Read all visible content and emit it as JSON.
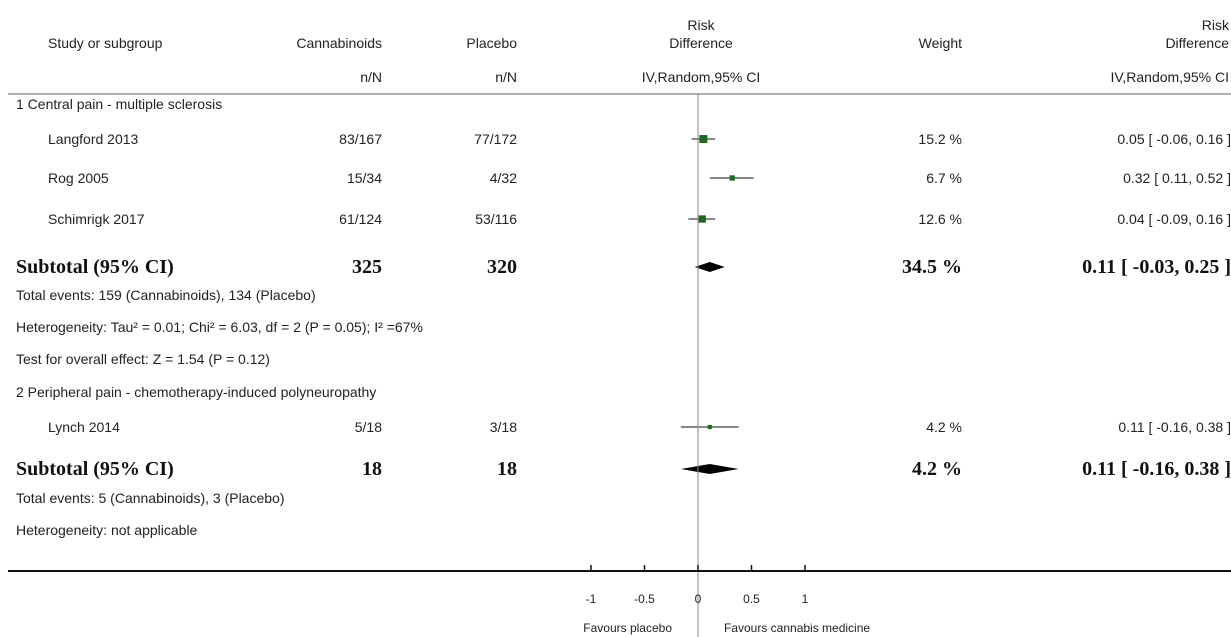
{
  "chart_data": {
    "type": "forest",
    "measure": "Risk Difference",
    "method": "IV,Random,95% CI",
    "columns": {
      "study": "Study or subgroup",
      "treatment": "Cannabinoids",
      "control": "Placebo",
      "effect_top": "Risk",
      "effect_bottom": "Difference",
      "weight": "Weight",
      "events_label": "n/N",
      "method_label": "IV,Random,95% CI"
    },
    "subgroups": [
      {
        "title": "1 Central pain - multiple sclerosis",
        "studies": [
          {
            "name": "Langford 2013",
            "treatment": "83/167",
            "control": "77/172",
            "rd": 0.05,
            "lower": -0.06,
            "upper": 0.16,
            "weight_pct": 15.2,
            "weight": "15.2 %",
            "ci_text": "0.05 [ -0.06, 0.16 ]"
          },
          {
            "name": "Rog 2005",
            "treatment": "15/34",
            "control": "4/32",
            "rd": 0.32,
            "lower": 0.11,
            "upper": 0.52,
            "weight_pct": 6.7,
            "weight": "6.7 %",
            "ci_text": "0.32 [ 0.11, 0.52 ]"
          },
          {
            "name": "Schimrigk 2017",
            "treatment": "61/124",
            "control": "53/116",
            "rd": 0.04,
            "lower": -0.09,
            "upper": 0.16,
            "weight_pct": 12.6,
            "weight": "12.6 %",
            "ci_text": "0.04 [ -0.09, 0.16 ]"
          }
        ],
        "subtotal": {
          "label": "Subtotal (95% CI)",
          "treatment": "325",
          "control": "320",
          "rd": 0.11,
          "lower": -0.03,
          "upper": 0.25,
          "weight": "34.5 %",
          "ci_text": "0.11 [ -0.03, 0.25 ]"
        },
        "notes": [
          "Total events: 159 (Cannabinoids), 134 (Placebo)",
          "Heterogeneity: Tau² = 0.01; Chi² = 6.03, df = 2 (P = 0.05); I² =67%",
          "Test for overall effect: Z = 1.54 (P = 0.12)"
        ]
      },
      {
        "title": "2 Peripheral pain - chemotherapy-induced polyneuropathy",
        "studies": [
          {
            "name": "Lynch 2014",
            "treatment": "5/18",
            "control": "3/18",
            "rd": 0.11,
            "lower": -0.16,
            "upper": 0.38,
            "weight_pct": 4.2,
            "weight": "4.2 %",
            "ci_text": "0.11 [ -0.16, 0.38 ]"
          }
        ],
        "subtotal": {
          "label": "Subtotal (95% CI)",
          "treatment": "18",
          "control": "18",
          "rd": 0.11,
          "lower": -0.16,
          "upper": 0.38,
          "weight": "4.2 %",
          "ci_text": "0.11 [ -0.16, 0.38 ]"
        },
        "notes": [
          "Total events: 5 (Cannabinoids), 3 (Placebo)",
          "Heterogeneity: not applicable"
        ]
      }
    ],
    "x_axis": {
      "ticks": [
        -1,
        -0.5,
        0,
        0.5,
        1
      ],
      "tick_labels": [
        "-1",
        "-0.5",
        "0",
        "0.5",
        "1"
      ],
      "xlim": [
        -1,
        1
      ],
      "favours_left": "Favours placebo",
      "favours_right": "Favours cannabis medicine"
    },
    "colors": {
      "marker": "#1e6b1e",
      "text": "#222222",
      "line": "#111111"
    }
  }
}
